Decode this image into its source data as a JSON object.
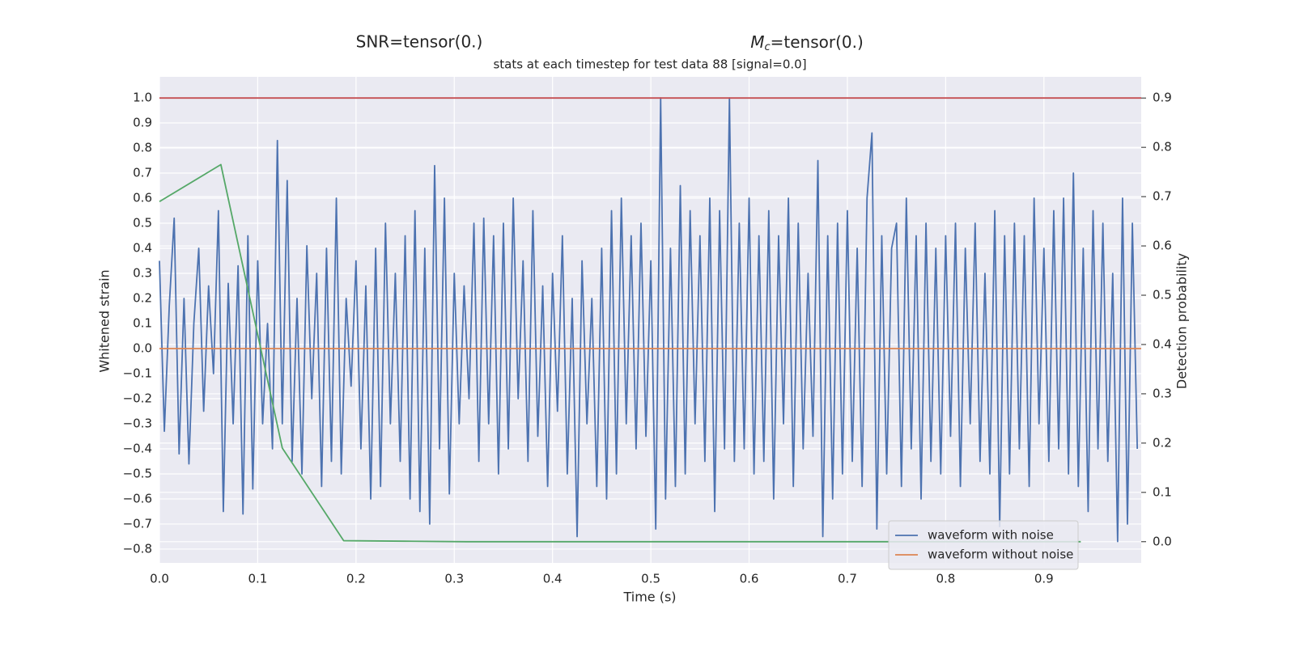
{
  "chart_data": {
    "type": "line",
    "title_left": "SNR=tensor(0.)",
    "title_right_parts": [
      "M",
      "c",
      "=tensor(0.)"
    ],
    "subtitle": "stats at each timestep for test data 88 [signal=0.0]",
    "xlabel": "Time (s)",
    "ylabel": "Whitened strain",
    "y2label": "Detection probability",
    "xlim": [
      0,
      0.999
    ],
    "ylim": [
      -0.855,
      1.084
    ],
    "y2lim": [
      -0.043,
      0.943
    ],
    "xticks": [
      {
        "value": 0,
        "label": "0.0"
      },
      0.1,
      0.2,
      0.3,
      0.4,
      0.5,
      0.6,
      0.7,
      0.8,
      0.9
    ],
    "yticks": [
      {
        "value": -0.8,
        "label": "−0.8"
      },
      {
        "value": -0.7,
        "label": "−0.7"
      },
      {
        "value": -0.6,
        "label": "−0.6"
      },
      {
        "value": -0.5,
        "label": "−0.5"
      },
      {
        "value": -0.4,
        "label": "−0.4"
      },
      {
        "value": -0.3,
        "label": "−0.3"
      },
      {
        "value": -0.2,
        "label": "−0.2"
      },
      {
        "value": -0.1,
        "label": "−0.1"
      },
      {
        "value": 0,
        "label": "0.0"
      },
      0.1,
      0.2,
      0.3,
      0.4,
      0.5,
      0.6,
      0.7,
      0.8,
      0.9,
      {
        "value": 1,
        "label": "1.0"
      }
    ],
    "y2ticks": [
      {
        "value": 0,
        "label": "0.0"
      },
      0.1,
      0.2,
      0.3,
      0.4,
      0.5,
      0.6,
      0.7,
      0.8,
      0.9
    ],
    "grid": true,
    "legend": "lower right",
    "hlines": [
      {
        "value": 0.9,
        "axis": "y2",
        "color": "#c44e52"
      }
    ],
    "series": [
      {
        "name": "waveform with noise",
        "color": "#4c72b0",
        "x": [
          0,
          0.005,
          0.01,
          0.015,
          0.02,
          0.025,
          0.03,
          0.035,
          0.04,
          0.045,
          0.05,
          0.055,
          0.06,
          0.065,
          0.07,
          0.075,
          0.08,
          0.085,
          0.09,
          0.095,
          0.1,
          0.105,
          0.11,
          0.115,
          0.12,
          0.125,
          0.13,
          0.135,
          0.14,
          0.145,
          0.15,
          0.155,
          0.16,
          0.165,
          0.17,
          0.175,
          0.18,
          0.185,
          0.19,
          0.195,
          0.2,
          0.205,
          0.21,
          0.215,
          0.22,
          0.225,
          0.23,
          0.235,
          0.24,
          0.245,
          0.25,
          0.255,
          0.26,
          0.265,
          0.27,
          0.275,
          0.28,
          0.285,
          0.29,
          0.295,
          0.3,
          0.305,
          0.31,
          0.315,
          0.32,
          0.325,
          0.33,
          0.335,
          0.34,
          0.345,
          0.35,
          0.355,
          0.36,
          0.365,
          0.37,
          0.375,
          0.38,
          0.385,
          0.39,
          0.395,
          0.4,
          0.405,
          0.41,
          0.415,
          0.42,
          0.425,
          0.43,
          0.435,
          0.44,
          0.445,
          0.45,
          0.455,
          0.46,
          0.465,
          0.47,
          0.475,
          0.48,
          0.485,
          0.49,
          0.495,
          0.5,
          0.505,
          0.51,
          0.515,
          0.52,
          0.525,
          0.53,
          0.535,
          0.54,
          0.545,
          0.55,
          0.555,
          0.56,
          0.565,
          0.57,
          0.575,
          0.58,
          0.585,
          0.59,
          0.595,
          0.6,
          0.605,
          0.61,
          0.615,
          0.62,
          0.625,
          0.63,
          0.635,
          0.64,
          0.645,
          0.65,
          0.655,
          0.66,
          0.665,
          0.67,
          0.675,
          0.68,
          0.685,
          0.69,
          0.695,
          0.7,
          0.705,
          0.71,
          0.715,
          0.72,
          0.725,
          0.73,
          0.735,
          0.74,
          0.745,
          0.75,
          0.755,
          0.76,
          0.765,
          0.77,
          0.775,
          0.78,
          0.785,
          0.79,
          0.795,
          0.8,
          0.805,
          0.81,
          0.815,
          0.82,
          0.825,
          0.83,
          0.835,
          0.84,
          0.845,
          0.85,
          0.855,
          0.86,
          0.865,
          0.87,
          0.875,
          0.88,
          0.885,
          0.89,
          0.895,
          0.9,
          0.905,
          0.91,
          0.915,
          0.92,
          0.925,
          0.93,
          0.935,
          0.94,
          0.945,
          0.95,
          0.955,
          0.96,
          0.965,
          0.97,
          0.975,
          0.98,
          0.985,
          0.99,
          0.995
        ],
        "values": [
          0.35,
          -0.33,
          0.17,
          0.52,
          -0.42,
          0.2,
          -0.46,
          0.1,
          0.4,
          -0.25,
          0.25,
          -0.1,
          0.55,
          -0.65,
          0.26,
          -0.3,
          0.33,
          -0.66,
          0.45,
          -0.56,
          0.35,
          -0.3,
          0.1,
          -0.4,
          0.83,
          -0.3,
          0.67,
          -0.45,
          0.2,
          -0.5,
          0.41,
          -0.2,
          0.3,
          -0.55,
          0.4,
          -0.45,
          0.6,
          -0.5,
          0.2,
          -0.15,
          0.35,
          -0.4,
          0.25,
          -0.6,
          0.4,
          -0.55,
          0.5,
          -0.3,
          0.3,
          -0.45,
          0.45,
          -0.6,
          0.55,
          -0.65,
          0.4,
          -0.7,
          0.73,
          -0.4,
          0.6,
          -0.58,
          0.3,
          -0.3,
          0.25,
          -0.2,
          0.5,
          -0.45,
          0.52,
          -0.3,
          0.45,
          -0.5,
          0.5,
          -0.4,
          0.6,
          -0.2,
          0.35,
          -0.45,
          0.55,
          -0.35,
          0.25,
          -0.55,
          0.3,
          -0.25,
          0.45,
          -0.5,
          0.2,
          -0.75,
          0.35,
          -0.3,
          0.2,
          -0.55,
          0.4,
          -0.6,
          0.55,
          -0.5,
          0.6,
          -0.3,
          0.45,
          -0.4,
          0.5,
          -0.35,
          0.35,
          -0.72,
          1.0,
          -0.6,
          0.4,
          -0.55,
          0.65,
          -0.5,
          0.55,
          -0.3,
          0.45,
          -0.45,
          0.6,
          -0.65,
          0.55,
          -0.4,
          1.0,
          -0.45,
          0.5,
          -0.4,
          0.6,
          -0.5,
          0.45,
          -0.45,
          0.55,
          -0.6,
          0.45,
          -0.3,
          0.6,
          -0.55,
          0.5,
          -0.4,
          0.3,
          -0.35,
          0.75,
          -0.75,
          0.45,
          -0.6,
          0.5,
          -0.5,
          0.55,
          -0.45,
          0.4,
          -0.55,
          0.6,
          0.86,
          -0.72,
          0.45,
          -0.5,
          0.4,
          0.5,
          -0.55,
          0.6,
          -0.4,
          0.45,
          -0.6,
          0.5,
          -0.45,
          0.4,
          -0.5,
          0.45,
          -0.35,
          0.5,
          -0.55,
          0.4,
          -0.3,
          0.5,
          -0.45,
          0.3,
          -0.5,
          0.55,
          -0.71,
          0.45,
          -0.5,
          0.5,
          -0.4,
          0.45,
          -0.55,
          0.6,
          -0.3,
          0.4,
          -0.45,
          0.55,
          -0.4,
          0.6,
          -0.5,
          0.7,
          -0.55,
          0.4,
          -0.65,
          0.55,
          -0.4,
          0.5,
          -0.45,
          0.3,
          -0.77,
          0.6,
          -0.7,
          0.5,
          -0.4
        ]
      },
      {
        "name": "waveform without noise",
        "color": "#dd8452",
        "x": [
          0,
          0.999
        ],
        "values": [
          0,
          0
        ]
      },
      {
        "color": "#55a868",
        "axis": "y2",
        "x": [
          0,
          0.0625,
          0.125,
          0.1875,
          0.25,
          0.3125,
          0.375,
          0.4375,
          0.5,
          0.5625,
          0.625,
          0.6875,
          0.75,
          0.8125,
          0.875,
          0.9375
        ],
        "values": [
          0.69,
          0.765,
          0.19,
          0.002,
          0.001,
          0,
          0,
          0,
          0,
          0,
          0,
          0,
          0,
          0,
          0,
          0
        ]
      }
    ]
  }
}
